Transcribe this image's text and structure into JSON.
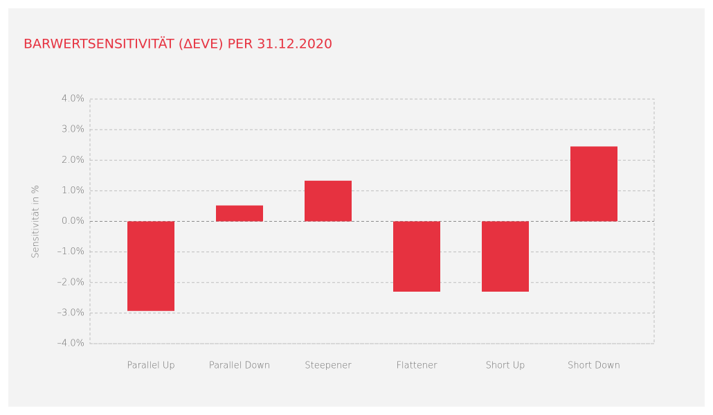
{
  "chart_data": {
    "type": "bar",
    "title": "BARWERTSENSITIVITÄT (ΔEVE) PER 31.12.2020",
    "y_axis_label": "Sensitivität in %",
    "categories": [
      "Parallel Up",
      "Parallel Down",
      "Steepener",
      "Flattener",
      "Short Up",
      "Short Down"
    ],
    "values": [
      -2.93,
      0.52,
      1.33,
      -2.3,
      -2.3,
      2.45
    ],
    "color": "#e63240",
    "ylim": [
      -4,
      4
    ],
    "yticks": [
      {
        "value": -4,
        "label": "–4.0%"
      },
      {
        "value": -3,
        "label": "–3.0%"
      },
      {
        "value": -2,
        "label": "–2.0%"
      },
      {
        "value": -1,
        "label": "–1.0%"
      },
      {
        "value": 0,
        "label": "0.0%"
      },
      {
        "value": 1,
        "label": "1.0%"
      },
      {
        "value": 2,
        "label": "2.0%"
      },
      {
        "value": 3,
        "label": "3.0%"
      },
      {
        "value": 4,
        "label": "4.0%"
      }
    ],
    "grid": true
  }
}
